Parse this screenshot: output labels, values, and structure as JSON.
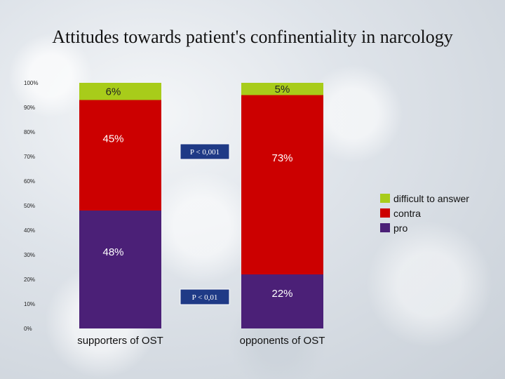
{
  "chart_data": {
    "type": "bar",
    "stacked": true,
    "title": "Attitudes towards patient's confinentiality in narcology",
    "categories": [
      "supporters of OST",
      "opponents of OST"
    ],
    "series": [
      {
        "name": "pro",
        "values": [
          48,
          22
        ],
        "labels": [
          "48%",
          "22%"
        ],
        "color": "#4b2077"
      },
      {
        "name": "contra",
        "values": [
          45,
          73
        ],
        "labels": [
          "45%",
          "73%"
        ],
        "color": "#cc0000"
      },
      {
        "name": "difficult to answer",
        "values": [
          6,
          5
        ],
        "labels": [
          "6%",
          "5%"
        ],
        "color": "#a8cc1a"
      }
    ],
    "ylim": [
      0,
      100
    ],
    "y_ticks": [
      "0%",
      "10%",
      "20%",
      "30%",
      "40%",
      "50%",
      "60%",
      "70%",
      "80%",
      "90%",
      "100%"
    ],
    "legend_position": "right",
    "annotations": [
      "P < 0,001",
      "P < 0,01"
    ]
  }
}
